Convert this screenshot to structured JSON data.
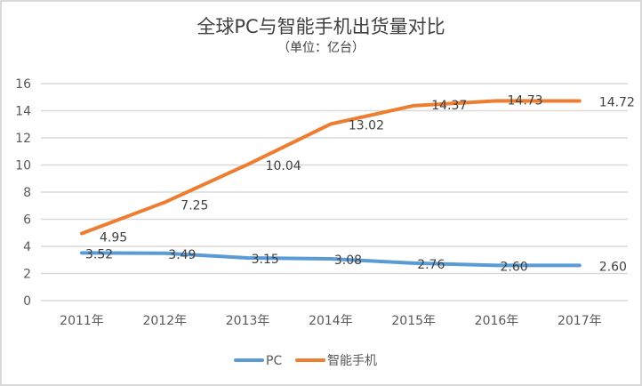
{
  "chart_data": {
    "type": "line",
    "title": "全球PC与智能手机出货量对比",
    "subtitle": "（单位：亿台）",
    "categories": [
      "2011年",
      "2012年",
      "2013年",
      "2014年",
      "2015年",
      "2016年",
      "2017年"
    ],
    "series": [
      {
        "name": "PC",
        "color": "#5b9bd5",
        "values": [
          3.52,
          3.49,
          3.15,
          3.08,
          2.76,
          2.6,
          2.6
        ],
        "labels": [
          "3.52",
          "3.49",
          "3.15",
          "3.08",
          "2.76",
          "2.60",
          "2.60"
        ]
      },
      {
        "name": "智能手机",
        "color": "#ed7d31",
        "values": [
          4.95,
          7.25,
          10.04,
          13.02,
          14.37,
          14.73,
          14.72
        ],
        "labels": [
          "4.95",
          "7.25",
          "10.04",
          "13.02",
          "14.37",
          "14.73",
          "14.72"
        ]
      }
    ],
    "ylim": [
      0,
      16
    ],
    "yticks": [
      "0",
      "2",
      "4",
      "6",
      "8",
      "10",
      "12",
      "14",
      "16"
    ],
    "grid": true,
    "legend": "bottom"
  }
}
